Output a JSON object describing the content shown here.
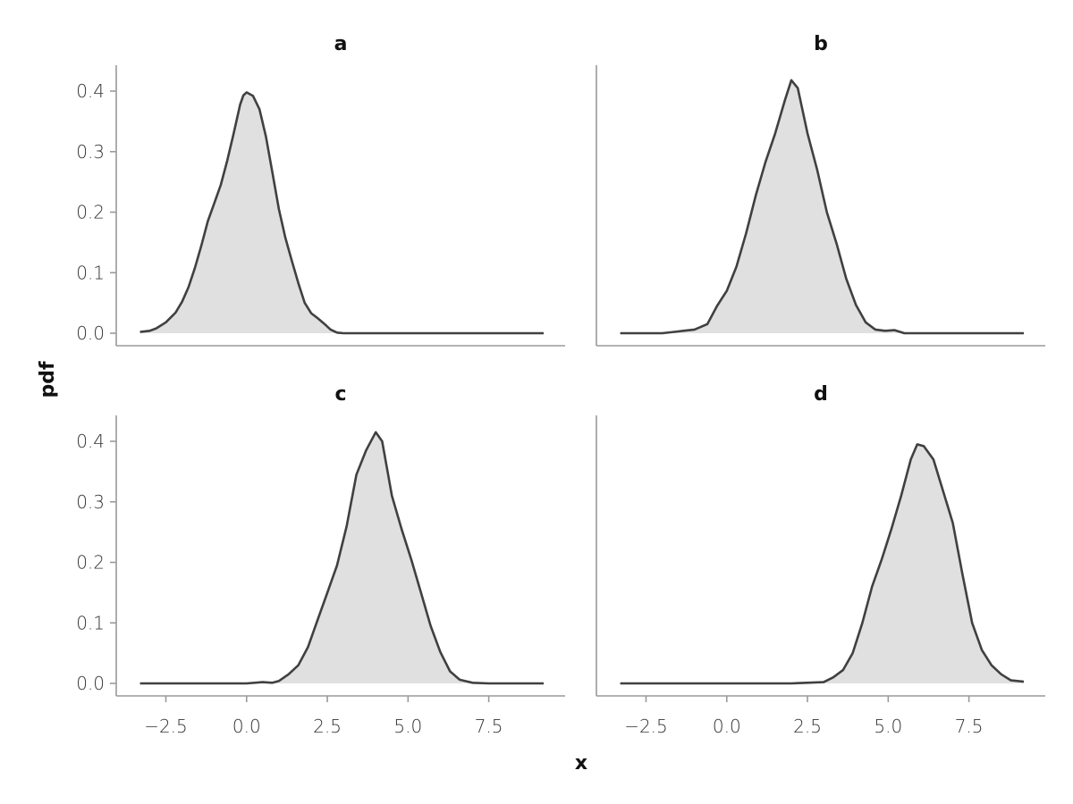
{
  "chart_data": {
    "type": "area",
    "layout": "2x2 facets",
    "xlabel": "x",
    "ylabel": "pdf",
    "xlim": [
      -3.4,
      9.2
    ],
    "ylim": [
      0,
      0.42
    ],
    "xticks": [
      -2.5,
      0.0,
      2.5,
      5.0,
      7.5
    ],
    "xtick_labels": [
      "−2.5",
      "0.0",
      "2.5",
      "5.0",
      "7.5"
    ],
    "yticks": [
      0.0,
      0.1,
      0.2,
      0.3,
      0.4
    ],
    "ytick_labels": [
      "0.0",
      "0.1",
      "0.2",
      "0.3",
      "0.4"
    ],
    "grid": false,
    "colors": {
      "line": "#404040",
      "fill": "#e0e0e0",
      "axis": "#9a9a9a"
    },
    "panels": [
      {
        "title": "a",
        "x": [
          -3.3,
          -3.0,
          -2.8,
          -2.5,
          -2.2,
          -2.0,
          -1.8,
          -1.6,
          -1.4,
          -1.2,
          -1.0,
          -0.8,
          -0.6,
          -0.4,
          -0.2,
          -0.1,
          0.0,
          0.2,
          0.4,
          0.6,
          0.8,
          1.0,
          1.2,
          1.4,
          1.6,
          1.8,
          2.0,
          2.2,
          2.4,
          2.6,
          2.8,
          3.0,
          3.2,
          3.5,
          4.0,
          5.0,
          6.0,
          7.0,
          8.0,
          9.2
        ],
        "y": [
          0.002,
          0.004,
          0.008,
          0.018,
          0.034,
          0.052,
          0.076,
          0.108,
          0.145,
          0.185,
          0.215,
          0.245,
          0.285,
          0.33,
          0.378,
          0.393,
          0.398,
          0.392,
          0.37,
          0.325,
          0.265,
          0.205,
          0.158,
          0.12,
          0.083,
          0.05,
          0.033,
          0.025,
          0.016,
          0.006,
          0.001,
          0.0,
          0.0,
          0.0,
          0.0,
          0.0,
          0.0,
          0.0,
          0.0,
          0.0
        ]
      },
      {
        "title": "b",
        "x": [
          -3.3,
          -2.0,
          -1.5,
          -1.0,
          -0.6,
          -0.3,
          0.0,
          0.3,
          0.6,
          0.9,
          1.2,
          1.5,
          1.8,
          2.0,
          2.2,
          2.5,
          2.8,
          3.1,
          3.4,
          3.7,
          4.0,
          4.3,
          4.6,
          4.9,
          5.2,
          5.5,
          6.0,
          7.0,
          8.0,
          9.2
        ],
        "y": [
          0.0,
          0.0,
          0.003,
          0.006,
          0.015,
          0.045,
          0.07,
          0.11,
          0.165,
          0.228,
          0.283,
          0.33,
          0.385,
          0.418,
          0.405,
          0.33,
          0.27,
          0.2,
          0.148,
          0.09,
          0.047,
          0.018,
          0.006,
          0.004,
          0.005,
          0.0,
          0.0,
          0.0,
          0.0,
          0.0
        ]
      },
      {
        "title": "c",
        "x": [
          -3.3,
          -1.0,
          0.0,
          0.5,
          0.8,
          1.0,
          1.3,
          1.6,
          1.9,
          2.2,
          2.5,
          2.8,
          3.1,
          3.4,
          3.7,
          4.0,
          4.2,
          4.5,
          4.8,
          5.1,
          5.4,
          5.7,
          6.0,
          6.3,
          6.6,
          7.0,
          7.5,
          8.0,
          9.2
        ],
        "y": [
          0.0,
          0.0,
          0.0,
          0.002,
          0.001,
          0.004,
          0.015,
          0.03,
          0.06,
          0.105,
          0.15,
          0.195,
          0.26,
          0.345,
          0.385,
          0.415,
          0.4,
          0.31,
          0.255,
          0.205,
          0.15,
          0.095,
          0.052,
          0.02,
          0.006,
          0.001,
          0.0,
          0.0,
          0.0
        ]
      },
      {
        "title": "d",
        "x": [
          -3.3,
          0.0,
          2.0,
          3.0,
          3.3,
          3.6,
          3.9,
          4.2,
          4.5,
          4.8,
          5.1,
          5.4,
          5.7,
          5.9,
          6.1,
          6.4,
          6.7,
          7.0,
          7.3,
          7.6,
          7.9,
          8.2,
          8.5,
          8.8,
          9.2
        ],
        "y": [
          0.0,
          0.0,
          0.0,
          0.002,
          0.01,
          0.022,
          0.05,
          0.1,
          0.16,
          0.205,
          0.255,
          0.31,
          0.37,
          0.395,
          0.392,
          0.37,
          0.318,
          0.265,
          0.18,
          0.1,
          0.055,
          0.03,
          0.015,
          0.005,
          0.003
        ]
      }
    ]
  }
}
